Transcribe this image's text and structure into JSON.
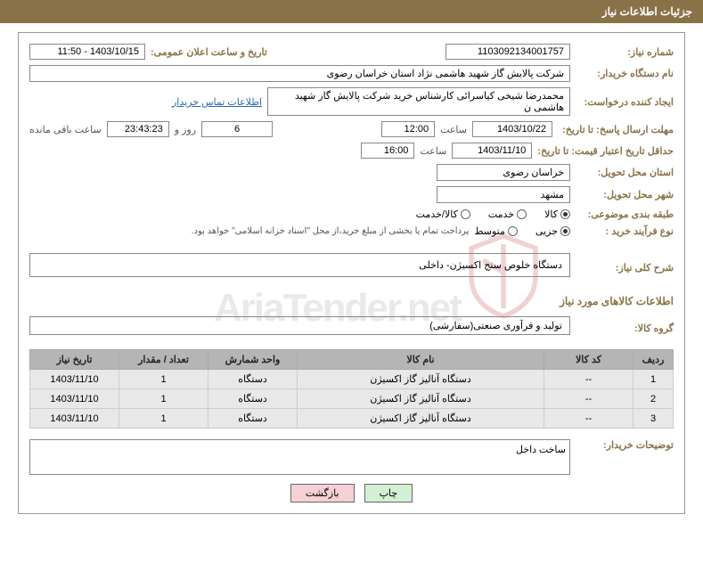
{
  "header": {
    "title": "جزئیات اطلاعات نیاز"
  },
  "fields": {
    "needNumber": {
      "label": "شماره نیاز:",
      "value": "1103092134001757"
    },
    "announceDate": {
      "label": "تاریخ و ساعت اعلان عمومی:",
      "value": "1403/10/15 - 11:50"
    },
    "buyerOrg": {
      "label": "نام دستگاه خریدار:",
      "value": "شرکت پالایش گاز شهید هاشمی نژاد   استان خراسان رضوی"
    },
    "requester": {
      "label": "ایجاد کننده درخواست:",
      "value": "محمدرضا شیخی کیاسرائی کارشناس خرید شرکت پالایش گاز شهید هاشمی ن"
    },
    "contactLink": "اطلاعات تماس خریدار",
    "deadline": {
      "label": "مهلت ارسال پاسخ: تا تاریخ:",
      "date": "1403/10/22",
      "timeLabel": "ساعت",
      "time": "12:00",
      "remainDays": "6",
      "daysLabel": "روز و",
      "remainTime": "23:43:23",
      "remainLabel": "ساعت باقی مانده"
    },
    "validity": {
      "label": "حداقل تاریخ اعتبار قیمت: تا تاریخ:",
      "date": "1403/11/10",
      "timeLabel": "ساعت",
      "time": "16:00"
    },
    "deliveryProvince": {
      "label": "استان محل تحویل:",
      "value": "خراسان رضوی"
    },
    "deliveryCity": {
      "label": "شهر محل تحویل:",
      "value": "مشهد"
    },
    "category": {
      "label": "طبقه بندی موضوعی:",
      "options": [
        "کالا",
        "خدمت",
        "کالا/خدمت"
      ],
      "selected": 0
    },
    "processType": {
      "label": "نوع فرآیند خرید :",
      "options": [
        "جزیی",
        "متوسط"
      ],
      "selected": 0,
      "note": "پرداخت تمام یا بخشی از مبلغ خرید،از محل \"اسناد خزانه اسلامی\" خواهد بود."
    },
    "overallDesc": {
      "label": "شرح کلی نیاز:",
      "value": "دستگاه خلوص سنج اکسیژن- داخلی"
    },
    "goodsInfoTitle": "اطلاعات کالاهای مورد نیاز",
    "goodsGroup": {
      "label": "گروه کالا:",
      "value": "تولید و فرآوری صنعتی(سفارشی)"
    },
    "buyerNotes": {
      "label": "توضیحات خریدار:",
      "value": "ساخت داخل"
    }
  },
  "table": {
    "headers": [
      "ردیف",
      "کد کالا",
      "نام کالا",
      "واحد شمارش",
      "تعداد / مقدار",
      "تاریخ نیاز"
    ],
    "rows": [
      [
        "1",
        "--",
        "دستگاه آنالیز گاز اکسیژن",
        "دستگاه",
        "1",
        "1403/11/10"
      ],
      [
        "2",
        "--",
        "دستگاه آنالیز گاز اکسیژن",
        "دستگاه",
        "1",
        "1403/11/10"
      ],
      [
        "3",
        "--",
        "دستگاه آنالیز گاز اکسیژن",
        "دستگاه",
        "1",
        "1403/11/10"
      ]
    ]
  },
  "buttons": {
    "print": "چاپ",
    "back": "بازگشت"
  },
  "watermark": "AriaTender.net",
  "colors": {
    "brand": "#8a7248",
    "headerBg": "#b5b5b5",
    "rowBg": "#e8e8e8"
  }
}
